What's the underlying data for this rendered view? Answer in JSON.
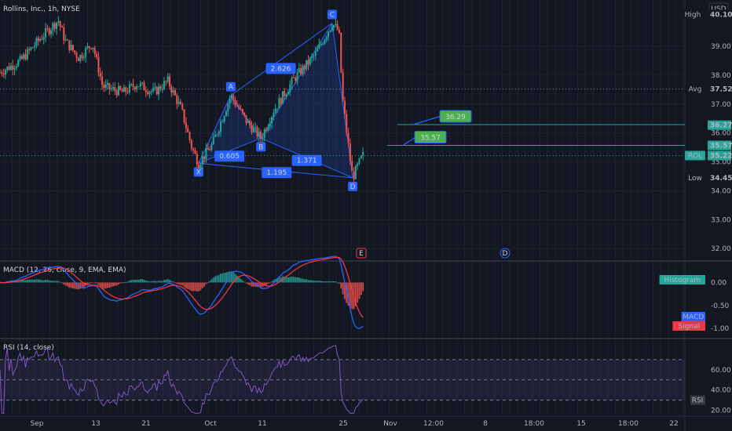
{
  "chart_data": {
    "type": "candlestick",
    "title": "Rollins, Inc., 1h, NYSE",
    "currency": "USD",
    "price_axis": {
      "ticks": [
        32.0,
        33.0,
        34.0,
        35.0,
        36.0,
        37.0,
        38.0,
        39.0
      ],
      "ylim": [
        31.6,
        40.6
      ]
    },
    "time_axis": {
      "ticks": [
        "Sep",
        "13",
        "21",
        "Oct",
        "11",
        "25",
        "Nov",
        "12:00",
        "8",
        "18:00",
        "15",
        "18:00",
        "22"
      ]
    },
    "price_badges": [
      {
        "name": "High",
        "value": "40.10",
        "color": "#131722",
        "text_color": "#d1d4dc",
        "y": 40.1
      },
      {
        "name": "Avg",
        "value": "37.52",
        "color": "#131722",
        "text_color": "#d1d4dc",
        "y": 37.52
      },
      {
        "name": "",
        "value": "36.27",
        "color": "#26a69a",
        "text_color": "#131722",
        "y": 36.27
      },
      {
        "name": "",
        "value": "35.57",
        "color": "#26a69a",
        "text_color": "#131722",
        "y": 35.57
      },
      {
        "name": "ROL",
        "value": "35.22",
        "color": "#26a69a",
        "text_color": "#ffffff",
        "y": 35.22
      },
      {
        "name": "Low",
        "value": "34.45",
        "color": "#131722",
        "text_color": "#d1d4dc",
        "y": 34.45
      }
    ],
    "pattern": {
      "points": [
        {
          "label": "X",
          "t": 0.29,
          "price": 34.95
        },
        {
          "label": "A",
          "t": 0.337,
          "price": 37.3
        },
        {
          "label": "B",
          "t": 0.381,
          "price": 35.82
        },
        {
          "label": "C",
          "t": 0.485,
          "price": 39.8
        },
        {
          "label": "D",
          "t": 0.515,
          "price": 34.45
        }
      ],
      "ratios": [
        {
          "value": "0.605",
          "t": 0.335,
          "price": 35.2
        },
        {
          "value": "2.626",
          "t": 0.41,
          "price": 38.23
        },
        {
          "value": "1.371",
          "t": 0.448,
          "price": 35.05
        },
        {
          "value": "1.195",
          "t": 0.404,
          "price": 34.63
        }
      ],
      "targets": [
        {
          "value": "36.29",
          "price": 36.29
        },
        {
          "value": "35.57",
          "price": 35.57
        }
      ]
    },
    "events": [
      {
        "label": "E",
        "color": "#f23645"
      },
      {
        "label": "D",
        "color": "#2962ff"
      }
    ],
    "macd": {
      "title": "MACD (12, 26, close, 9, EMA, EMA)",
      "ticks": [
        0.0,
        -0.5,
        -1.0
      ],
      "ylim": [
        -1.2,
        0.45
      ],
      "legend": [
        {
          "label": "Histogram",
          "color": "#26a69a"
        },
        {
          "label": "MACD",
          "color": "#2962ff"
        },
        {
          "label": "Signal",
          "color": "#f23645"
        }
      ]
    },
    "rsi": {
      "title": "RSI (14, close)",
      "ticks": [
        20.0,
        40.0,
        60.0
      ],
      "ylim": [
        15,
        90
      ],
      "levels": [
        70,
        50,
        30
      ],
      "badge": "RSI"
    }
  }
}
